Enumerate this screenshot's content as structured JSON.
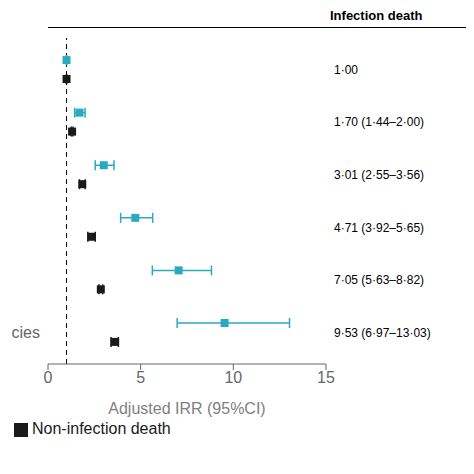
{
  "chart_data": {
    "type": "scatter",
    "title": "Infection death",
    "xlabel": "Adjusted IRR (95%CI)",
    "orientation": "horizontal",
    "categories": [
      null,
      null,
      null,
      null,
      null,
      "cies"
    ],
    "annotations": [
      "1·00",
      "1·70 (1·44–2·00)",
      "3·01 (2·55–3·56)",
      "4·71 (3·92–5·65)",
      "7·05 (5·63–8·82)",
      "9·53 (6·97–13·03)"
    ],
    "xlim": [
      0,
      15
    ],
    "xticks": [
      0,
      5,
      10,
      15
    ],
    "grid": false,
    "legend": "lower left",
    "reference_lines": [
      {
        "x": 1.0,
        "line_style": "dashed"
      }
    ],
    "series": [
      {
        "color": "#2aaabf",
        "marker": "square",
        "values": [
          1.0,
          1.7,
          3.01,
          4.71,
          7.05,
          9.53
        ],
        "ci_low": [
          1.0,
          1.44,
          2.55,
          3.92,
          5.63,
          6.97
        ],
        "ci_high": [
          1.0,
          2.0,
          3.56,
          5.65,
          8.82,
          13.03
        ]
      },
      {
        "name": "Non-infection death",
        "color": "#1a1a1a",
        "marker": "square",
        "values": [
          1.0,
          1.3,
          1.85,
          2.35,
          2.85,
          3.6
        ],
        "ci_low": [
          1.0,
          1.25,
          1.7,
          2.15,
          2.75,
          3.4
        ],
        "ci_high": [
          1.0,
          1.35,
          2.0,
          2.55,
          2.95,
          3.8
        ]
      }
    ]
  }
}
